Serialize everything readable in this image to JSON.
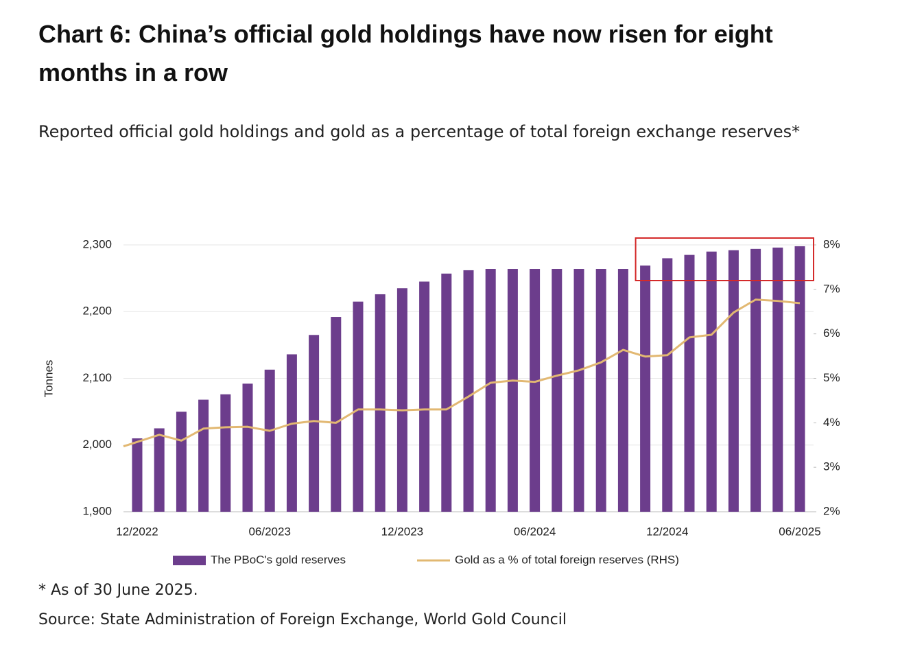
{
  "chart_data": {
    "type": "bar-line",
    "title": "Chart 6: China’s official gold holdings have now risen for eight months in a row",
    "subtitle": "Reported official gold holdings and gold as a percentage of total foreign exchange reserves*",
    "ylabel": "Tonnes",
    "categories": [
      "12/2022",
      null,
      null,
      null,
      null,
      null,
      "06/2023",
      null,
      null,
      null,
      null,
      null,
      "12/2023",
      null,
      null,
      null,
      null,
      null,
      "06/2024",
      null,
      null,
      null,
      null,
      null,
      "12/2024",
      null,
      null,
      null,
      null,
      null,
      "06/2025"
    ],
    "series": [
      {
        "name": "The PBoC's gold reserves",
        "color": "#6c3d8c",
        "axis": "y",
        "values": [
          2010,
          2025,
          2050,
          2068,
          2076,
          2092,
          2113,
          2136,
          2165,
          2192,
          2215,
          2226,
          2235,
          2245,
          2257,
          2262,
          2264,
          2264,
          2264,
          2264,
          2264,
          2264,
          2264,
          2269,
          2280,
          2285,
          2290,
          2292,
          2294,
          2296,
          2298
        ]
      },
      {
        "name": "Gold as a % of total foreign reserves (RHS)",
        "color": "#e2b872",
        "axis": "y2",
        "values": [
          3.47,
          3.73,
          3.6,
          3.87,
          3.9,
          3.91,
          3.82,
          3.98,
          4.04,
          4.0,
          4.3,
          4.3,
          4.28,
          4.3,
          4.3,
          4.59,
          4.9,
          4.95,
          4.92,
          5.06,
          5.18,
          5.36,
          5.64,
          5.49,
          5.52,
          5.92,
          5.98,
          6.48,
          6.77,
          6.74,
          6.69
        ]
      }
    ],
    "ylim": [
      1900,
      2300
    ],
    "yticks": [
      {
        "value": 1900,
        "label": "1,900"
      },
      {
        "value": 2000,
        "label": "2,000"
      },
      {
        "value": 2100,
        "label": "2,100"
      },
      {
        "value": 2200,
        "label": "2,200"
      },
      {
        "value": 2300,
        "label": "2,300"
      }
    ],
    "y2lim": [
      2,
      8
    ],
    "y2ticks": [
      {
        "value": 2,
        "label": "2%"
      },
      {
        "value": 3,
        "label": "3%"
      },
      {
        "value": 4,
        "label": "4%"
      },
      {
        "value": 5,
        "label": "5%"
      },
      {
        "value": 6,
        "label": "6%"
      },
      {
        "value": 7,
        "label": "7%"
      },
      {
        "value": 8,
        "label": "8%"
      }
    ],
    "grid": true,
    "footnote": "* As of 30 June 2025.",
    "source": "Source: State Administration of Foreign Exchange, World Gold Council"
  }
}
